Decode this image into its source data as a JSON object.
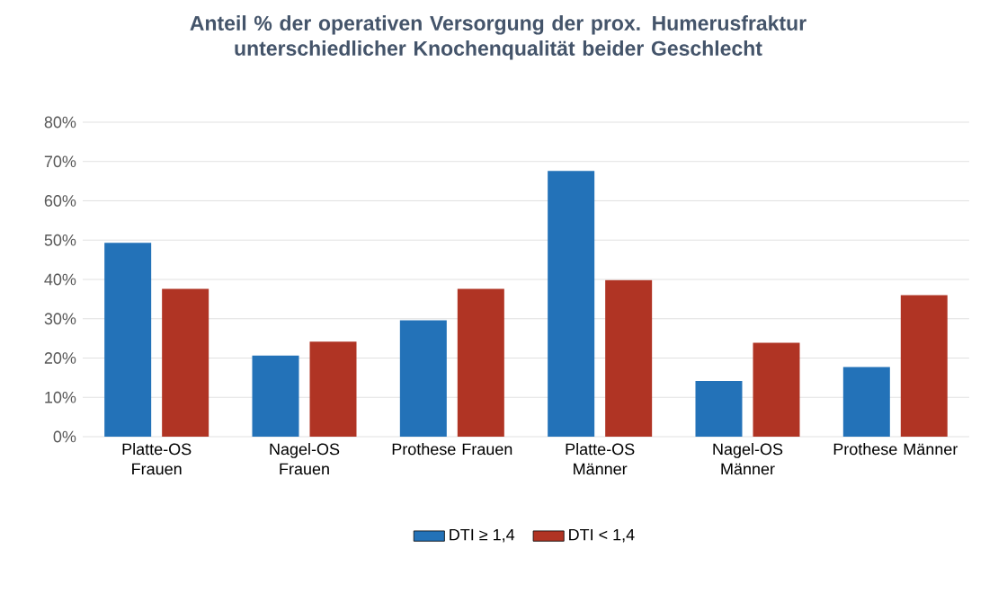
{
  "chart_data": {
    "type": "bar",
    "title": "Anteil % der operativen Versorgung der prox. Humerusfraktur unterschiedlicher Knochenqualität beider Geschlecht",
    "categories": [
      "Platte-OS Frauen",
      "Nagel-OS Frauen",
      "Prothese Frauen",
      "Platte-OS Männer",
      "Nagel-OS Männer",
      "Prothese Männer"
    ],
    "series": [
      {
        "name": "DTI ≥ 1,4",
        "color": "#2372b8",
        "values": [
          49.3,
          20.6,
          29.6,
          67.6,
          14.2,
          17.7
        ]
      },
      {
        "name": "DTI < 1,4",
        "color": "#b03424",
        "values": [
          37.6,
          24.2,
          37.6,
          39.8,
          23.9,
          36.0
        ]
      }
    ],
    "ylim": [
      0,
      80
    ],
    "yticks": [
      {
        "value": 0,
        "label": "0%"
      },
      {
        "value": 10,
        "label": "10%"
      },
      {
        "value": 20,
        "label": "20%"
      },
      {
        "value": 30,
        "label": "30%"
      },
      {
        "value": 40,
        "label": "40%"
      },
      {
        "value": 50,
        "label": "50%"
      },
      {
        "value": 60,
        "label": "60%"
      },
      {
        "value": 70,
        "label": "70%"
      },
      {
        "value": 80,
        "label": "80%"
      }
    ],
    "grid": "y",
    "legend": "bottom"
  }
}
